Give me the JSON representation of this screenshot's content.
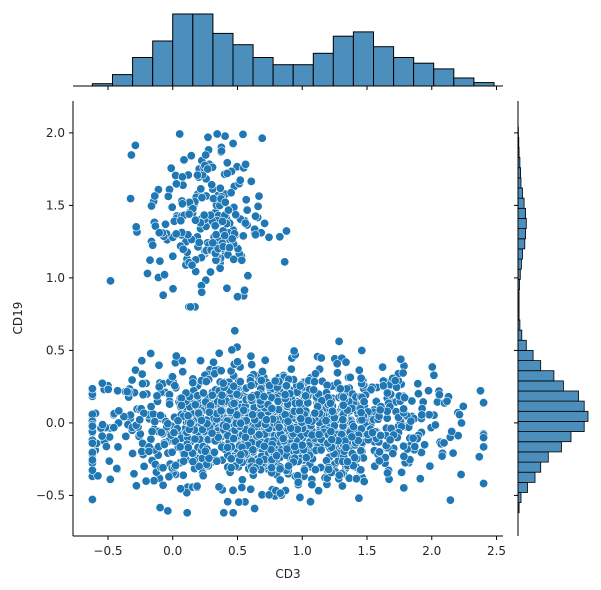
{
  "chart_data": {
    "type": "scatter",
    "kind": "jointplot",
    "xlabel": "CD3",
    "ylabel": "CD19",
    "xlim": [
      -0.77,
      2.55
    ],
    "ylim": [
      -0.78,
      2.22
    ],
    "xticks": [
      -0.5,
      0.0,
      0.5,
      1.0,
      1.5,
      2.0,
      2.5
    ],
    "xtick_labels": [
      "−0.5",
      "0.0",
      "0.5",
      "1.0",
      "1.5",
      "2.0",
      "2.5"
    ],
    "yticks": [
      -0.5,
      0.0,
      0.5,
      1.0,
      1.5,
      2.0
    ],
    "ytick_labels": [
      "−0.5",
      "0.0",
      "0.5",
      "1.0",
      "1.5",
      "2.0"
    ],
    "point_color": "#1f77b4",
    "hist_fill": "#4c8fbd",
    "grid": false,
    "legend": "none",
    "clusters": [
      {
        "name_hint": "main",
        "n": 1500,
        "x_mean": 0.75,
        "x_sd": 0.62,
        "y_mean": -0.02,
        "y_sd": 0.2
      },
      {
        "name_hint": "upper",
        "n": 230,
        "x_mean": 0.25,
        "x_sd": 0.22,
        "y_mean": 1.4,
        "y_sd": 0.28
      }
    ],
    "top_hist": {
      "bin_edges": [
        -0.62,
        -0.465,
        -0.31,
        -0.155,
        0.0,
        0.155,
        0.31,
        0.465,
        0.62,
        0.775,
        0.93,
        1.085,
        1.24,
        1.395,
        1.55,
        1.705,
        1.86,
        2.015,
        2.17,
        2.325,
        2.48
      ],
      "counts": [
        8,
        40,
        100,
        158,
        253,
        253,
        185,
        145,
        100,
        75,
        75,
        115,
        175,
        190,
        138,
        100,
        80,
        60,
        28,
        12
      ]
    },
    "right_hist": {
      "bin_edges": [
        -0.62,
        -0.55,
        -0.48,
        -0.41,
        -0.34,
        -0.27,
        -0.2,
        -0.13,
        -0.06,
        0.01,
        0.08,
        0.15,
        0.22,
        0.29,
        0.36,
        0.43,
        0.5,
        0.57,
        0.64,
        0.71,
        0.78,
        0.85,
        0.92,
        0.99,
        1.06,
        1.13,
        1.2,
        1.27,
        1.34,
        1.41,
        1.48,
        1.55,
        1.62,
        1.69,
        1.76,
        1.83,
        1.9,
        1.97,
        2.04
      ],
      "counts": [
        3,
        8,
        25,
        45,
        60,
        80,
        115,
        140,
        175,
        185,
        175,
        160,
        120,
        95,
        60,
        40,
        22,
        10,
        5,
        3,
        3,
        3,
        4,
        6,
        9,
        12,
        18,
        20,
        22,
        20,
        16,
        12,
        8,
        7,
        5,
        3,
        2,
        1
      ]
    }
  }
}
